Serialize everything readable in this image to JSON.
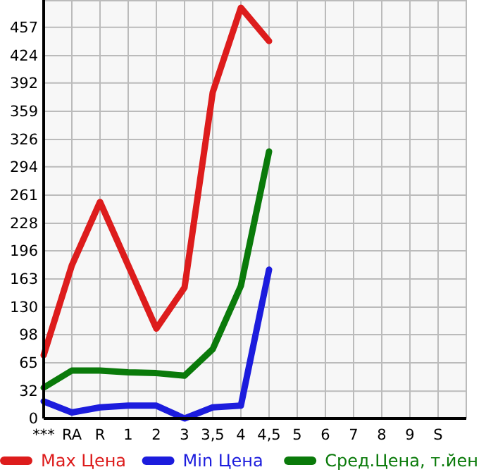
{
  "chart_data": {
    "type": "line",
    "categories": [
      "***",
      "RA",
      "R",
      "1",
      "2",
      "3",
      "3,5",
      "4",
      "4,5",
      "5",
      "6",
      "7",
      "8",
      "9",
      "S"
    ],
    "ylim": [
      0,
      489
    ],
    "yticks": [
      0,
      32,
      65,
      98,
      130,
      163,
      196,
      228,
      261,
      294,
      326,
      359,
      392,
      424,
      457
    ],
    "grid": true,
    "legend": "bottom",
    "marker": "none",
    "line_style": "solid",
    "series": [
      {
        "name": "Max Цена",
        "color": "#dd1c1c",
        "values": [
          74,
          179,
          253,
          179,
          105,
          153,
          381,
          480,
          441,
          null,
          null,
          null,
          null,
          null,
          null
        ]
      },
      {
        "name": "Min Цена",
        "color": "#1c1cdd",
        "values": [
          20,
          7,
          13,
          15,
          15,
          0,
          13,
          15,
          174,
          null,
          null,
          null,
          null,
          null,
          null
        ]
      },
      {
        "name": "Сред.Цена, т.йен",
        "color": "#0a7a0a",
        "values": [
          36,
          56,
          56,
          54,
          53,
          50,
          81,
          155,
          312,
          null,
          null,
          null,
          null,
          null,
          null
        ]
      }
    ]
  }
}
